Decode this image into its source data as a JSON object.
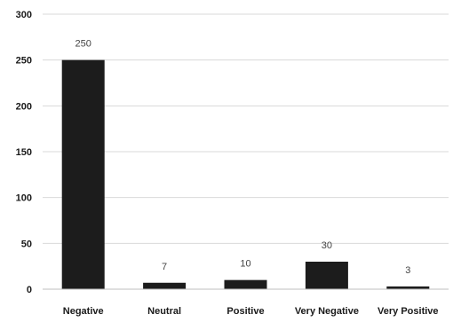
{
  "chart_data": {
    "type": "bar",
    "categories": [
      "Negative",
      "Neutral",
      "Positive",
      "Very Negative",
      "Very Positive"
    ],
    "values": [
      250,
      7,
      10,
      30,
      3
    ],
    "data_labels": [
      "250",
      "7",
      "10",
      "30",
      "3"
    ],
    "title": "",
    "xlabel": "",
    "ylabel": "",
    "ylim": [
      0,
      300
    ],
    "yticks": [
      0,
      50,
      100,
      150,
      200,
      250,
      300
    ],
    "grid": true,
    "legend": "none",
    "colors": {
      "bar": "#1c1c1c",
      "grid": "#d9d9d9",
      "axis": "#bfbfbf"
    }
  }
}
